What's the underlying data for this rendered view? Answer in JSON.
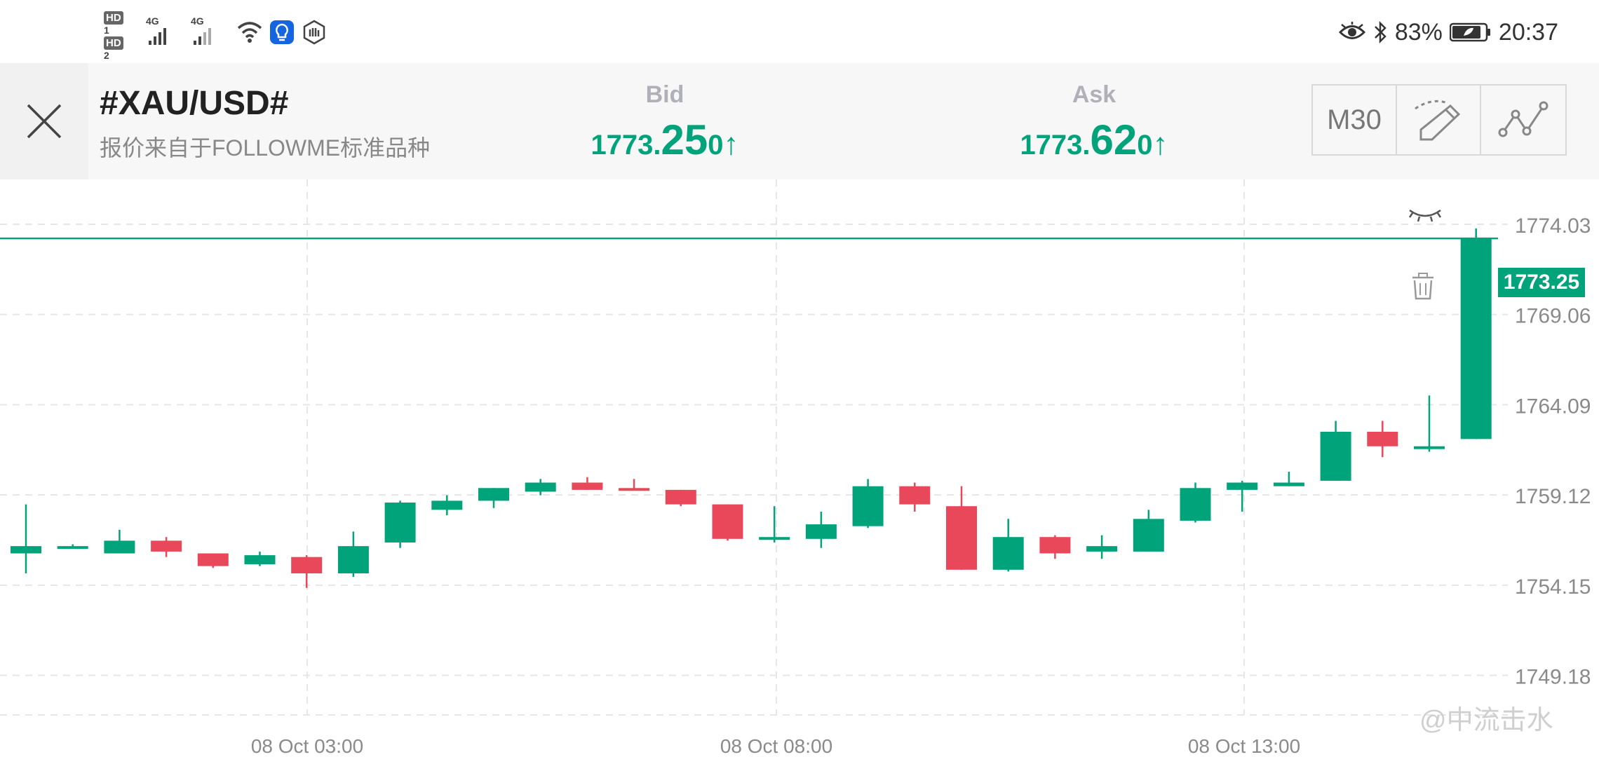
{
  "status_bar": {
    "hd1": "HD",
    "hd1_sub": "1",
    "hd2": "HD",
    "hd2_sub": "2",
    "sig1": "4G",
    "sig2": "4G",
    "battery": "83%",
    "time": "20:37"
  },
  "header": {
    "symbol": "#XAU/USD#",
    "subtitle": "报价来自于FOLLOWME标准品种",
    "bid": {
      "label": "Bid",
      "int": "1773.",
      "big": "25",
      "small": "0",
      "arrow": "↑"
    },
    "ask": {
      "label": "Ask",
      "int": "1773.",
      "big": "62",
      "small": "0",
      "arrow": "↑"
    },
    "timeframe": "M30"
  },
  "chart": {
    "current_price": "1773.25",
    "y_ticks": [
      "1774.03",
      "1769.06",
      "1764.09",
      "1759.12",
      "1754.15",
      "1749.18"
    ],
    "x_ticks": [
      "08 Oct  03:00",
      "08 Oct  08:00",
      "08 Oct  13:00"
    ],
    "watermark": "@中流击水",
    "colors": {
      "up": "#00a37a",
      "down": "#e8485a",
      "line": "#00a37a"
    }
  },
  "chart_data": {
    "type": "candlestick",
    "ylim": [
      1747.0,
      1776.5
    ],
    "y_ticks": [
      1774.03,
      1769.06,
      1764.09,
      1759.12,
      1754.15
    ],
    "x_ticks": [
      "08 Oct  03:00",
      "08 Oct  08:00",
      "08 Oct  13:00"
    ],
    "current_price": 1773.25,
    "candles": [
      {
        "o": 1755.9,
        "h": 1758.6,
        "l": 1754.8,
        "c": 1756.3
      },
      {
        "o": 1756.3,
        "h": 1756.4,
        "l": 1756.2,
        "c": 1756.3
      },
      {
        "o": 1755.9,
        "h": 1757.2,
        "l": 1755.9,
        "c": 1756.6
      },
      {
        "o": 1756.6,
        "h": 1756.8,
        "l": 1755.7,
        "c": 1756.0
      },
      {
        "o": 1755.9,
        "h": 1755.9,
        "l": 1755.1,
        "c": 1755.2
      },
      {
        "o": 1755.3,
        "h": 1756.0,
        "l": 1755.2,
        "c": 1755.8
      },
      {
        "o": 1755.7,
        "h": 1755.8,
        "l": 1754.0,
        "c": 1754.8
      },
      {
        "o": 1754.8,
        "h": 1757.1,
        "l": 1754.6,
        "c": 1756.3
      },
      {
        "o": 1756.5,
        "h": 1758.8,
        "l": 1756.2,
        "c": 1758.7
      },
      {
        "o": 1758.3,
        "h": 1759.1,
        "l": 1758.0,
        "c": 1758.8
      },
      {
        "o": 1758.8,
        "h": 1759.5,
        "l": 1758.4,
        "c": 1759.5
      },
      {
        "o": 1759.3,
        "h": 1760.0,
        "l": 1759.1,
        "c": 1759.8
      },
      {
        "o": 1759.8,
        "h": 1760.1,
        "l": 1759.4,
        "c": 1759.4
      },
      {
        "o": 1759.5,
        "h": 1760.0,
        "l": 1759.4,
        "c": 1759.4
      },
      {
        "o": 1759.4,
        "h": 1759.4,
        "l": 1758.5,
        "c": 1758.6
      },
      {
        "o": 1758.6,
        "h": 1758.6,
        "l": 1756.6,
        "c": 1756.7
      },
      {
        "o": 1756.7,
        "h": 1758.5,
        "l": 1756.5,
        "c": 1756.8
      },
      {
        "o": 1756.7,
        "h": 1758.2,
        "l": 1756.2,
        "c": 1757.5
      },
      {
        "o": 1757.4,
        "h": 1760.0,
        "l": 1757.3,
        "c": 1759.6
      },
      {
        "o": 1759.6,
        "h": 1759.8,
        "l": 1758.2,
        "c": 1758.6
      },
      {
        "o": 1758.5,
        "h": 1759.6,
        "l": 1755.0,
        "c": 1755.0
      },
      {
        "o": 1755.0,
        "h": 1757.8,
        "l": 1754.9,
        "c": 1756.8
      },
      {
        "o": 1756.8,
        "h": 1756.9,
        "l": 1755.6,
        "c": 1755.9
      },
      {
        "o": 1756.0,
        "h": 1756.9,
        "l": 1755.6,
        "c": 1756.3
      },
      {
        "o": 1756.0,
        "h": 1758.3,
        "l": 1756.0,
        "c": 1757.8
      },
      {
        "o": 1757.7,
        "h": 1759.8,
        "l": 1757.6,
        "c": 1759.5
      },
      {
        "o": 1759.4,
        "h": 1759.9,
        "l": 1758.2,
        "c": 1759.8
      },
      {
        "o": 1759.6,
        "h": 1760.4,
        "l": 1759.6,
        "c": 1759.8
      },
      {
        "o": 1759.9,
        "h": 1763.2,
        "l": 1759.9,
        "c": 1762.6
      },
      {
        "o": 1762.6,
        "h": 1763.2,
        "l": 1761.2,
        "c": 1761.8
      },
      {
        "o": 1761.7,
        "h": 1764.6,
        "l": 1761.5,
        "c": 1761.8
      },
      {
        "o": 1762.2,
        "h": 1773.8,
        "l": 1762.2,
        "c": 1773.25
      }
    ]
  }
}
